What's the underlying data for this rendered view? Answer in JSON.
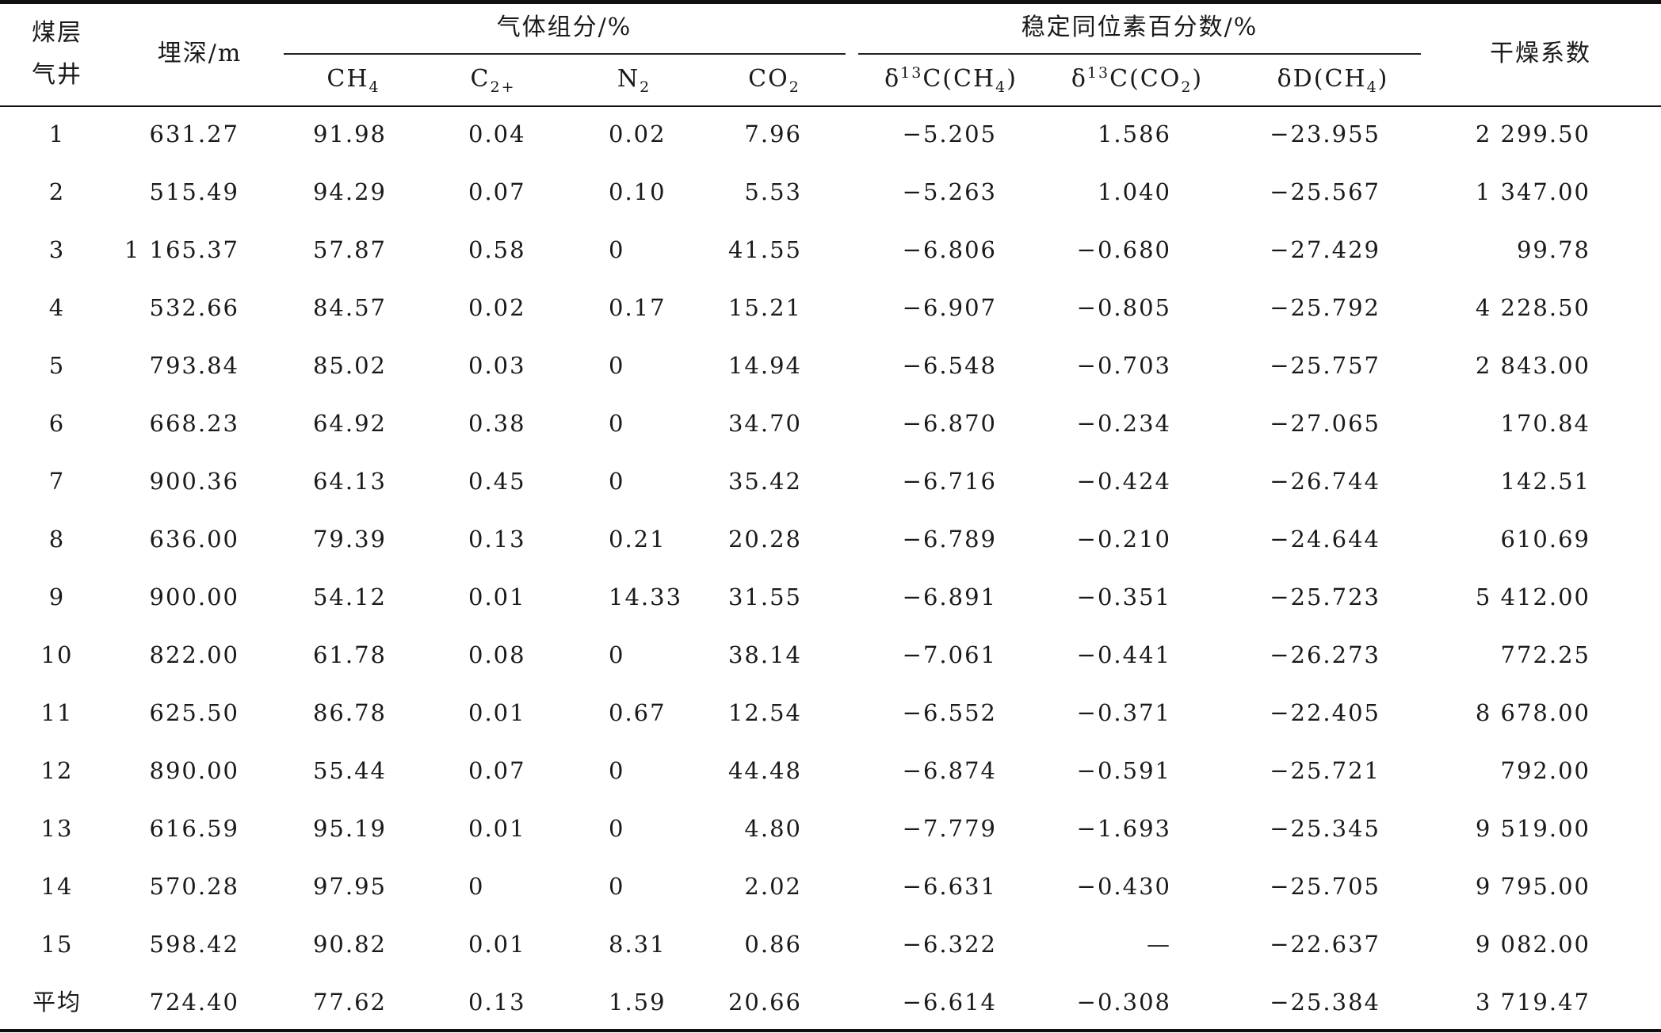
{
  "header": {
    "row_label_top": "煤层",
    "row_label_bottom": "气井",
    "depth": "埋深/m",
    "gas_group": "气体组分/%",
    "isotope_group": "稳定同位素百分数/%",
    "dryness": "干燥系数",
    "ch4": {
      "base": "CH",
      "sub": "4"
    },
    "c2": {
      "base": "C",
      "sub": "2+"
    },
    "n2": {
      "base": "N",
      "sub": "2"
    },
    "co2": {
      "base": "CO",
      "sub": "2"
    },
    "d13c_ch4": {
      "pre": "δ",
      "sup": "13",
      "mid": "C(CH",
      "sub": "4",
      "post": ")"
    },
    "d13c_co2": {
      "pre": "δ",
      "sup": "13",
      "mid": "C(CO",
      "sub": "2",
      "post": ")"
    },
    "dd_ch4": {
      "pre": "δD(CH",
      "sub": "4",
      "post": ")"
    }
  },
  "rows": [
    [
      "1",
      "631.27",
      "91.98",
      "0.04",
      "0.02",
      "7.96",
      "−5.205",
      "1.586",
      "−23.955",
      "2 299.50"
    ],
    [
      "2",
      "515.49",
      "94.29",
      "0.07",
      "0.10",
      "5.53",
      "−5.263",
      "1.040",
      "−25.567",
      "1 347.00"
    ],
    [
      "3",
      "1 165.37",
      "57.87",
      "0.58",
      "0",
      "41.55",
      "−6.806",
      "−0.680",
      "−27.429",
      "99.78"
    ],
    [
      "4",
      "532.66",
      "84.57",
      "0.02",
      "0.17",
      "15.21",
      "−6.907",
      "−0.805",
      "−25.792",
      "4 228.50"
    ],
    [
      "5",
      "793.84",
      "85.02",
      "0.03",
      "0",
      "14.94",
      "−6.548",
      "−0.703",
      "−25.757",
      "2 843.00"
    ],
    [
      "6",
      "668.23",
      "64.92",
      "0.38",
      "0",
      "34.70",
      "−6.870",
      "−0.234",
      "−27.065",
      "170.84"
    ],
    [
      "7",
      "900.36",
      "64.13",
      "0.45",
      "0",
      "35.42",
      "−6.716",
      "−0.424",
      "−26.744",
      "142.51"
    ],
    [
      "8",
      "636.00",
      "79.39",
      "0.13",
      "0.21",
      "20.28",
      "−6.789",
      "−0.210",
      "−24.644",
      "610.69"
    ],
    [
      "9",
      "900.00",
      "54.12",
      "0.01",
      "14.33",
      "31.55",
      "−6.891",
      "−0.351",
      "−25.723",
      "5 412.00"
    ],
    [
      "10",
      "822.00",
      "61.78",
      "0.08",
      "0",
      "38.14",
      "−7.061",
      "−0.441",
      "−26.273",
      "772.25"
    ],
    [
      "11",
      "625.50",
      "86.78",
      "0.01",
      "0.67",
      "12.54",
      "−6.552",
      "−0.371",
      "−22.405",
      "8 678.00"
    ],
    [
      "12",
      "890.00",
      "55.44",
      "0.07",
      "0",
      "44.48",
      "−6.874",
      "−0.591",
      "−25.721",
      "792.00"
    ],
    [
      "13",
      "616.59",
      "95.19",
      "0.01",
      "0",
      "4.80",
      "−7.779",
      "−1.693",
      "−25.345",
      "9 519.00"
    ],
    [
      "14",
      "570.28",
      "97.95",
      "0",
      "0",
      "2.02",
      "−6.631",
      "−0.430",
      "−25.705",
      "9 795.00"
    ],
    [
      "15",
      "598.42",
      "90.82",
      "0.01",
      "8.31",
      "0.86",
      "−6.322",
      "—",
      "−22.637",
      "9 082.00"
    ],
    [
      "平均",
      "724.40",
      "77.62",
      "0.13",
      "1.59",
      "20.66",
      "−6.614",
      "−0.308",
      "−25.384",
      "3 719.47"
    ]
  ]
}
